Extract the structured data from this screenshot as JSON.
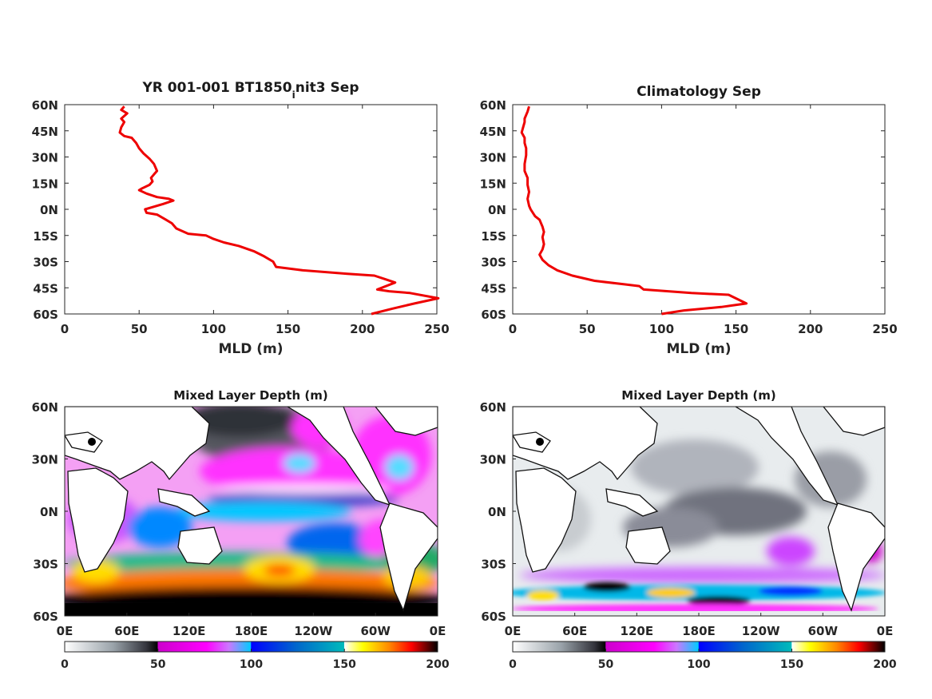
{
  "chart_data": [
    {
      "type": "line",
      "title_main": "YR 001-001 BT1850",
      "title_sub": "i",
      "title_end": "nit3 Sep",
      "xlabel": "MLD (m)",
      "xlim": [
        0,
        250
      ],
      "ylim": [
        -60,
        60
      ],
      "xticks": [
        "0",
        "50",
        "100",
        "150",
        "200",
        "250"
      ],
      "yticks": [
        "60N",
        "45N",
        "30N",
        "15N",
        "0N",
        "15S",
        "30S",
        "45S",
        "60S"
      ],
      "series": [
        {
          "color": "#ee0000",
          "points": [
            [
              40,
              59
            ],
            [
              38,
              57
            ],
            [
              42,
              55
            ],
            [
              38,
              52
            ],
            [
              40,
              50
            ],
            [
              38,
              47
            ],
            [
              37,
              44
            ],
            [
              40,
              42
            ],
            [
              45,
              41
            ],
            [
              48,
              38
            ],
            [
              50,
              35
            ],
            [
              53,
              32
            ],
            [
              57,
              29
            ],
            [
              60,
              26
            ],
            [
              62,
              22
            ],
            [
              60,
              20
            ],
            [
              58,
              18
            ],
            [
              59,
              16
            ],
            [
              57,
              14
            ],
            [
              52,
              12
            ],
            [
              50,
              11
            ],
            [
              55,
              9
            ],
            [
              62,
              7
            ],
            [
              70,
              6
            ],
            [
              73,
              5
            ],
            [
              66,
              3
            ],
            [
              58,
              1
            ],
            [
              54,
              0
            ],
            [
              55,
              -2
            ],
            [
              62,
              -3
            ],
            [
              68,
              -6
            ],
            [
              72,
              -8
            ],
            [
              75,
              -11
            ],
            [
              83,
              -14
            ],
            [
              95,
              -15
            ],
            [
              100,
              -17
            ],
            [
              107,
              -19
            ],
            [
              117,
              -21
            ],
            [
              127,
              -24
            ],
            [
              134,
              -27
            ],
            [
              140,
              -30
            ],
            [
              142,
              -33
            ],
            [
              160,
              -35
            ],
            [
              190,
              -37
            ],
            [
              208,
              -38
            ],
            [
              215,
              -40
            ],
            [
              222,
              -42
            ],
            [
              210,
              -46
            ],
            [
              218,
              -47
            ],
            [
              232,
              -48
            ],
            [
              251,
              -51
            ],
            [
              235,
              -54
            ],
            [
              220,
              -57
            ],
            [
              206,
              -60
            ]
          ]
        }
      ]
    },
    {
      "type": "line",
      "title": "Climatology Sep",
      "xlabel": "MLD (m)",
      "xlim": [
        0,
        250
      ],
      "ylim": [
        -60,
        60
      ],
      "xticks": [
        "0",
        "50",
        "100",
        "150",
        "200",
        "250"
      ],
      "yticks": [
        "60N",
        "45N",
        "30N",
        "15N",
        "0N",
        "15S",
        "30S",
        "45S",
        "60S"
      ],
      "series": [
        {
          "color": "#ee0000",
          "points": [
            [
              11,
              59
            ],
            [
              10,
              56
            ],
            [
              8,
              52
            ],
            [
              8,
              50
            ],
            [
              7,
              47
            ],
            [
              6,
              44
            ],
            [
              8,
              41
            ],
            [
              8,
              38
            ],
            [
              9,
              35
            ],
            [
              9,
              31
            ],
            [
              8,
              26
            ],
            [
              8,
              22
            ],
            [
              10,
              18
            ],
            [
              10,
              14
            ],
            [
              11,
              10
            ],
            [
              10,
              6
            ],
            [
              11,
              2
            ],
            [
              12,
              0
            ],
            [
              15,
              -4
            ],
            [
              18,
              -6
            ],
            [
              20,
              -10
            ],
            [
              21,
              -13
            ],
            [
              20,
              -16
            ],
            [
              21,
              -20
            ],
            [
              20,
              -23
            ],
            [
              18,
              -26
            ],
            [
              20,
              -29
            ],
            [
              24,
              -32
            ],
            [
              30,
              -35
            ],
            [
              40,
              -38
            ],
            [
              55,
              -41
            ],
            [
              75,
              -43
            ],
            [
              85,
              -44
            ],
            [
              88,
              -46
            ],
            [
              120,
              -48
            ],
            [
              145,
              -49
            ],
            [
              157,
              -54
            ],
            [
              140,
              -56
            ],
            [
              115,
              -58
            ],
            [
              100,
              -60
            ]
          ]
        }
      ]
    },
    {
      "type": "heatmap",
      "title": "Mixed Layer Depth (m)",
      "xticks": [
        "0E",
        "60E",
        "120E",
        "180E",
        "120W",
        "60W",
        "0E"
      ],
      "yticks": [
        "60N",
        "30N",
        "0N",
        "30S",
        "60S"
      ],
      "colorbar": {
        "range": [
          0,
          200
        ],
        "ticks": [
          "0",
          "50",
          "100",
          "150",
          "200"
        ],
        "stops": [
          "#ffffff",
          "#9aa3aa",
          "#33343c",
          "#000000",
          "#cc00cc",
          "#ff00ff",
          "#cc77ff",
          "#00ccff",
          "#0000ff",
          "#00bbbb",
          "#ffffff",
          "#ffff00",
          "#ff8800",
          "#ff0000",
          "#000000"
        ]
      }
    },
    {
      "type": "heatmap",
      "title": "Mixed Layer Depth (m)",
      "xticks": [
        "0E",
        "60E",
        "120E",
        "180E",
        "120W",
        "60W",
        "0E"
      ],
      "yticks": [
        "60N",
        "30N",
        "0N",
        "30S",
        "60S"
      ],
      "colorbar": {
        "range": [
          0,
          200
        ],
        "ticks": [
          "0",
          "50",
          "100",
          "150",
          "200"
        ],
        "stops": [
          "#ffffff",
          "#9aa3aa",
          "#33343c",
          "#000000",
          "#cc00cc",
          "#ff00ff",
          "#cc77ff",
          "#00ccff",
          "#0000ff",
          "#00bbbb",
          "#ffffff",
          "#ffff00",
          "#ff8800",
          "#ff0000",
          "#000000"
        ]
      }
    }
  ]
}
